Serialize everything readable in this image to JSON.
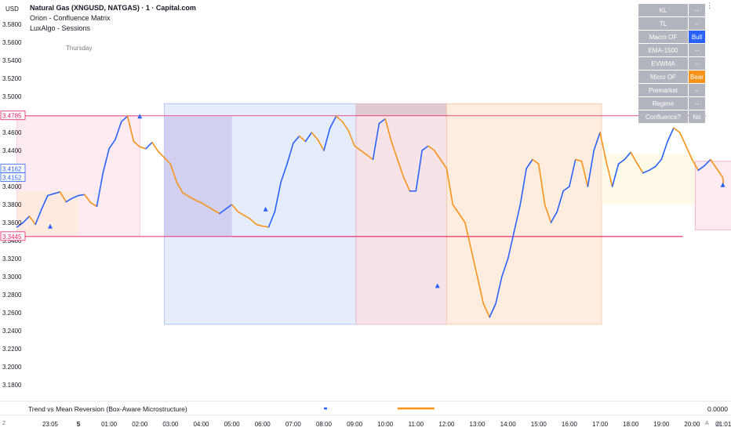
{
  "header": {
    "currency": "USD",
    "symbol_title": "Natural Gas (XNGUSD, NATGAS) · 1 · Capital.com",
    "indicators": [
      "Orion - Confluence Matrix",
      "LuxAlgo - Sessions"
    ],
    "session_label": "Thursday"
  },
  "confluence_table": [
    {
      "key": "KL",
      "value": "--",
      "color": "#b2b5be"
    },
    {
      "key": "TL",
      "value": "--",
      "color": "#b2b5be"
    },
    {
      "key": "Macro OF",
      "value": "Bull",
      "color": "#2962ff"
    },
    {
      "key": "EMA-1500",
      "value": "--",
      "color": "#b2b5be"
    },
    {
      "key": "EVWMA",
      "value": "--",
      "color": "#b2b5be"
    },
    {
      "key": "Micro OF",
      "value": "Bear",
      "color": "#f7931a"
    },
    {
      "key": "Premarket",
      "value": "--",
      "color": "#b2b5be"
    },
    {
      "key": "Regime",
      "value": "--",
      "color": "#b2b5be"
    },
    {
      "key": "Confluence?",
      "value": "No",
      "color": "#b2b5be"
    }
  ],
  "bottom_pane": {
    "title": "Trend vs Mean Reversion (Box-Aware Microstructure)",
    "value": "0.0000"
  },
  "controls": {
    "left": "Z",
    "right": "A"
  },
  "chart_data": {
    "type": "line",
    "title": "Natural Gas (XNGUSD, NATGAS) · 1 · Capital.com",
    "ylabel": "USD",
    "ylim": [
      3.16,
      3.595
    ],
    "y_ticks": [
      3.18,
      3.2,
      3.22,
      3.24,
      3.26,
      3.28,
      3.3,
      3.32,
      3.34,
      3.36,
      3.38,
      3.4,
      3.42,
      3.44,
      3.46,
      3.48,
      3.5,
      3.52,
      3.54,
      3.56,
      3.58
    ],
    "x_tick_labels": [
      "23:05",
      "5",
      "01:00",
      "02:00",
      "03:00",
      "04:00",
      "05:00",
      "06:00",
      "07:00",
      "08:00",
      "09:00",
      "10:00",
      "11:00",
      "12:00",
      "13:00",
      "14:00",
      "15:00",
      "16:00",
      "17:00",
      "18:00",
      "19:00",
      "20:00",
      "21:01"
    ],
    "x_hours": [
      -0.92,
      0.0,
      1.0,
      2.0,
      3.0,
      4.0,
      5.0,
      6.0,
      7.0,
      8.0,
      9.0,
      10.0,
      11.0,
      12.0,
      13.0,
      14.0,
      15.0,
      16.0,
      17.0,
      18.0,
      19.0,
      20.0,
      21.02
    ],
    "price_labels": [
      {
        "value": 3.4785,
        "text": "3.4785",
        "color": "#e91e63"
      },
      {
        "value": 3.4162,
        "text": "3.4162",
        "color": "#2962ff"
      },
      {
        "value": 3.4152,
        "text": "3.4152",
        "color": "#2962ff"
      },
      {
        "value": 3.3445,
        "text": "3.3445",
        "color": "#e91e63"
      }
    ],
    "series": [
      {
        "color_up": "#2962ff",
        "color_down": "#f7931a",
        "x": [
          -2.0,
          -1.8,
          -1.6,
          -1.4,
          -1.2,
          -1.0,
          -0.8,
          -0.6,
          -0.4,
          -0.2,
          0.0,
          0.2,
          0.4,
          0.6,
          0.8,
          1.0,
          1.2,
          1.4,
          1.6,
          1.8,
          2.0,
          2.2,
          2.4,
          2.6,
          2.8,
          3.0,
          3.2,
          3.4,
          3.6,
          3.8,
          4.0,
          4.2,
          4.4,
          4.6,
          4.8,
          5.0,
          5.2,
          5.4,
          5.6,
          5.8,
          6.0,
          6.2,
          6.4,
          6.6,
          6.8,
          7.0,
          7.2,
          7.4,
          7.6,
          7.8,
          8.0,
          8.2,
          8.4,
          8.6,
          8.8,
          9.0,
          9.2,
          9.4,
          9.6,
          9.8,
          10.0,
          10.2,
          10.4,
          10.6,
          10.8,
          11.0,
          11.2,
          11.4,
          11.6,
          11.8,
          12.0,
          12.2,
          12.4,
          12.6,
          12.8,
          13.0,
          13.2,
          13.4,
          13.6,
          13.8,
          14.0,
          14.2,
          14.4,
          14.6,
          14.8,
          15.0,
          15.2,
          15.4,
          15.6,
          15.8,
          16.0,
          16.2,
          16.4,
          16.6,
          16.8,
          17.0,
          17.2,
          17.4,
          17.6,
          17.8,
          18.0,
          18.2,
          18.4,
          18.6,
          18.8,
          19.0,
          19.2,
          19.4,
          19.6,
          19.8,
          20.0,
          20.2,
          20.4,
          20.6,
          20.8,
          21.0,
          21.02
        ],
        "values": [
          3.355,
          3.36,
          3.367,
          3.358,
          3.375,
          3.39,
          3.392,
          3.394,
          3.383,
          3.387,
          3.39,
          3.391,
          3.382,
          3.378,
          3.415,
          3.442,
          3.452,
          3.472,
          3.478,
          3.45,
          3.444,
          3.442,
          3.449,
          3.439,
          3.432,
          3.425,
          3.405,
          3.393,
          3.389,
          3.385,
          3.382,
          3.378,
          3.374,
          3.37,
          3.375,
          3.38,
          3.372,
          3.368,
          3.364,
          3.358,
          3.356,
          3.355,
          3.372,
          3.405,
          3.425,
          3.448,
          3.456,
          3.45,
          3.46,
          3.452,
          3.44,
          3.465,
          3.478,
          3.472,
          3.462,
          3.445,
          3.44,
          3.435,
          3.43,
          3.47,
          3.475,
          3.45,
          3.43,
          3.41,
          3.395,
          3.395,
          3.44,
          3.445,
          3.44,
          3.43,
          3.42,
          3.38,
          3.37,
          3.36,
          3.33,
          3.3,
          3.27,
          3.255,
          3.27,
          3.3,
          3.32,
          3.35,
          3.38,
          3.42,
          3.43,
          3.425,
          3.38,
          3.36,
          3.372,
          3.395,
          3.4,
          3.43,
          3.428,
          3.4,
          3.44,
          3.46,
          3.428,
          3.4,
          3.425,
          3.43,
          3.438,
          3.426,
          3.415,
          3.418,
          3.422,
          3.43,
          3.45,
          3.465,
          3.46,
          3.445,
          3.43,
          3.418,
          3.423,
          3.43,
          3.42,
          3.41,
          3.402
        ]
      }
    ]
  }
}
